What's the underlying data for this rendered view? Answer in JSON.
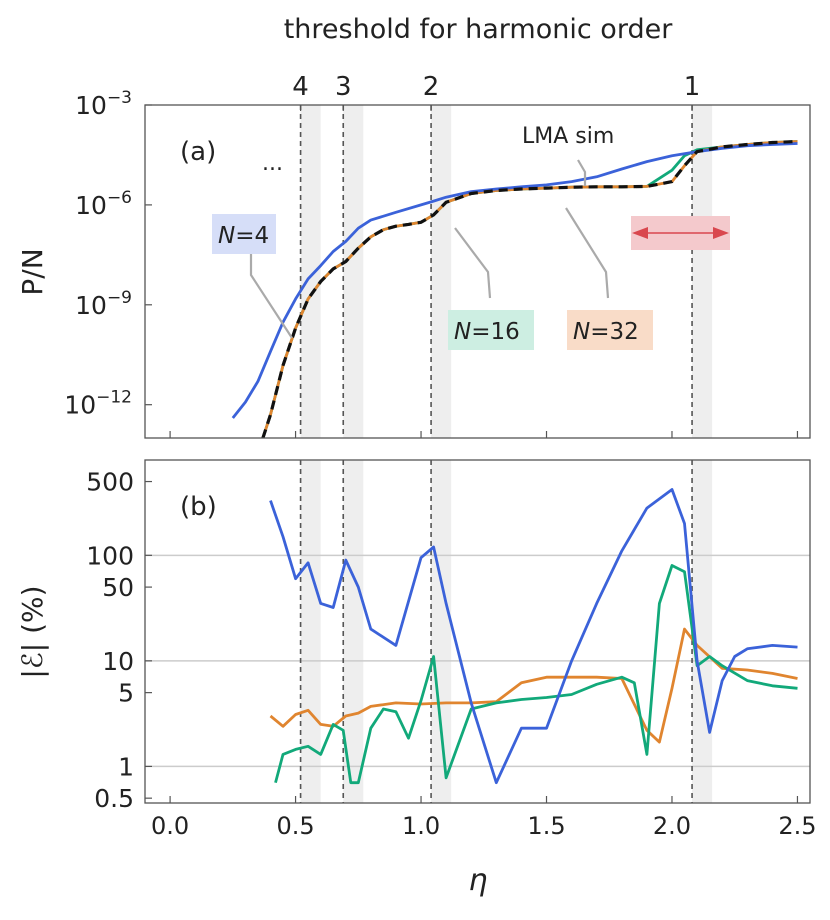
{
  "chart_data": [
    {
      "type": "line",
      "panel_label": "(a)",
      "top_axis_title": "threshold for harmonic order",
      "top_tick_labels": [
        "4",
        "3",
        "2",
        "1"
      ],
      "threshold_eta": [
        0.52,
        0.69,
        1.04,
        2.08
      ],
      "shaded_bands": [
        [
          0.52,
          0.6
        ],
        [
          0.69,
          0.77
        ],
        [
          1.04,
          1.12
        ],
        [
          2.08,
          2.16
        ]
      ],
      "ylabel": "P/N",
      "yscale": "log",
      "ylim": [
        1e-13,
        0.001
      ],
      "xlim": [
        -0.1,
        2.55
      ],
      "yticks": [
        {
          "value": 1e-12,
          "base": "10",
          "exp": "−12"
        },
        {
          "value": 1e-09,
          "base": "10",
          "exp": "−9"
        },
        {
          "value": 1e-06,
          "base": "10",
          "exp": "−6"
        },
        {
          "value": 0.001,
          "base": "10",
          "exp": "−3"
        }
      ],
      "ellipsis": "...",
      "annotations": {
        "lma": "LMA sim",
        "n4": {
          "pre": "N",
          "post": "=4"
        },
        "n16": {
          "pre": "N",
          "post": "=16"
        },
        "n32": {
          "pre": "N",
          "post": "=32"
        }
      },
      "series": [
        {
          "key": "N4",
          "color": "#3b62d9",
          "x": [
            0.25,
            0.3,
            0.35,
            0.4,
            0.45,
            0.5,
            0.55,
            0.6,
            0.65,
            0.7,
            0.75,
            0.8,
            0.9,
            1.0,
            1.05,
            1.1,
            1.2,
            1.3,
            1.4,
            1.5,
            1.6,
            1.7,
            1.8,
            1.9,
            2.0,
            2.1,
            2.2,
            2.3,
            2.4,
            2.5
          ],
          "y": [
            4e-13,
            1.2e-12,
            5e-12,
            4e-11,
            3e-10,
            1.5e-09,
            6e-09,
            1.5e-08,
            4e-08,
            8e-08,
            2e-07,
            3.5e-07,
            6e-07,
            1e-06,
            1.3e-06,
            1.7e-06,
            2.5e-06,
            3e-06,
            3.5e-06,
            4e-06,
            5e-06,
            7e-06,
            1.2e-05,
            2e-05,
            3e-05,
            4e-05,
            5e-05,
            6e-05,
            6.5e-05,
            7e-05
          ]
        },
        {
          "key": "N16",
          "color": "#12a97a",
          "x": [
            0.37,
            0.4,
            0.45,
            0.5,
            0.55,
            0.6,
            0.65,
            0.7,
            0.75,
            0.8,
            0.85,
            0.9,
            0.95,
            1.0,
            1.05,
            1.1,
            1.2,
            1.3,
            1.4,
            1.5,
            1.6,
            1.7,
            1.8,
            1.9,
            2.0,
            2.05,
            2.1,
            2.2,
            2.3,
            2.4,
            2.5
          ],
          "y": [
            3e-14,
            5e-13,
            1.5e-11,
            2e-10,
            1.5e-09,
            5e-09,
            1.2e-08,
            2e-08,
            5e-08,
            1.1e-07,
            1.8e-07,
            2.3e-07,
            2.6e-07,
            3e-07,
            5e-07,
            1.2e-06,
            2.2e-06,
            2.7e-06,
            3e-06,
            3.2e-06,
            3.4e-06,
            3.5e-06,
            3.5e-06,
            3.6e-06,
            1.1e-05,
            3e-05,
            4.5e-05,
            5.5e-05,
            6.5e-05,
            7.5e-05,
            8e-05
          ]
        },
        {
          "key": "N32",
          "color": "#e0852f",
          "x": [
            0.37,
            0.4,
            0.45,
            0.5,
            0.55,
            0.6,
            0.65,
            0.7,
            0.75,
            0.8,
            0.85,
            0.9,
            0.95,
            1.0,
            1.05,
            1.1,
            1.2,
            1.3,
            1.4,
            1.5,
            1.6,
            1.7,
            1.8,
            1.9,
            2.0,
            2.05,
            2.1,
            2.2,
            2.3,
            2.4,
            2.5
          ],
          "y": [
            3e-14,
            5e-13,
            1.5e-11,
            2e-10,
            1.5e-09,
            5e-09,
            1.2e-08,
            2e-08,
            5e-08,
            1.1e-07,
            1.8e-07,
            2.3e-07,
            2.6e-07,
            3e-07,
            5e-07,
            1.2e-06,
            2.2e-06,
            2.7e-06,
            3e-06,
            3.2e-06,
            3.4e-06,
            3.5e-06,
            3.5e-06,
            3.6e-06,
            5e-06,
            1.5e-05,
            4e-05,
            5.5e-05,
            6.5e-05,
            7.5e-05,
            8e-05
          ]
        },
        {
          "key": "LMA",
          "color": "#111111",
          "dashed": true,
          "x": [
            0.37,
            0.4,
            0.45,
            0.5,
            0.55,
            0.6,
            0.65,
            0.7,
            0.75,
            0.8,
            0.85,
            0.9,
            0.95,
            1.0,
            1.05,
            1.1,
            1.2,
            1.3,
            1.4,
            1.5,
            1.6,
            1.7,
            1.8,
            1.9,
            2.0,
            2.05,
            2.1,
            2.2,
            2.3,
            2.4,
            2.5
          ],
          "y": [
            3e-14,
            5e-13,
            1.5e-11,
            2e-10,
            1.5e-09,
            5e-09,
            1.2e-08,
            2e-08,
            5e-08,
            1.1e-07,
            1.8e-07,
            2.3e-07,
            2.6e-07,
            3e-07,
            5e-07,
            1.2e-06,
            2.2e-06,
            2.7e-06,
            3e-06,
            3.2e-06,
            3.4e-06,
            3.5e-06,
            3.5e-06,
            3.6e-06,
            5e-06,
            1.5e-05,
            4e-05,
            5.5e-05,
            6.5e-05,
            7.5e-05,
            8e-05
          ]
        }
      ]
    },
    {
      "type": "line",
      "panel_label": "(b)",
      "xlabel": "η",
      "ylabel": "|ℰ| (%)",
      "yscale": "log",
      "ylim": [
        0.45,
        800
      ],
      "xlim": [
        -0.1,
        2.55
      ],
      "xticks": [
        "0.0",
        "0.5",
        "1.0",
        "1.5",
        "2.0",
        "2.5"
      ],
      "xtick_values": [
        0,
        0.5,
        1.0,
        1.5,
        2.0,
        2.5
      ],
      "yticks": [
        "0.5",
        "1",
        "5",
        "10",
        "50",
        "100",
        "500"
      ],
      "ytick_values": [
        0.5,
        1,
        5,
        10,
        50,
        100,
        500
      ],
      "gridlines_y": [
        1,
        10,
        100
      ],
      "series": [
        {
          "key": "N4",
          "color": "#3b62d9",
          "x": [
            0.4,
            0.45,
            0.5,
            0.55,
            0.6,
            0.65,
            0.7,
            0.75,
            0.8,
            0.9,
            1.0,
            1.05,
            1.1,
            1.2,
            1.3,
            1.4,
            1.5,
            1.6,
            1.7,
            1.8,
            1.9,
            2.0,
            2.05,
            2.1,
            2.15,
            2.2,
            2.25,
            2.3,
            2.4,
            2.5
          ],
          "y": [
            330,
            150,
            60,
            85,
            35,
            32,
            90,
            50,
            20,
            14,
            95,
            120,
            35,
            4,
            0.7,
            2.3,
            2.3,
            10,
            35,
            110,
            280,
            420,
            200,
            10,
            2.1,
            6.5,
            11,
            13,
            14,
            13.5
          ]
        },
        {
          "key": "N16",
          "color": "#12a97a",
          "x": [
            0.42,
            0.45,
            0.5,
            0.55,
            0.6,
            0.65,
            0.69,
            0.72,
            0.75,
            0.8,
            0.85,
            0.9,
            0.95,
            1.0,
            1.05,
            1.1,
            1.2,
            1.3,
            1.4,
            1.5,
            1.6,
            1.7,
            1.8,
            1.85,
            1.9,
            1.95,
            2.0,
            2.05,
            2.1,
            2.15,
            2.2,
            2.3,
            2.4,
            2.5
          ],
          "y": [
            0.7,
            1.3,
            1.45,
            1.55,
            1.3,
            2.5,
            2.2,
            0.7,
            0.7,
            2.3,
            3.5,
            3.3,
            1.85,
            4.2,
            11,
            0.78,
            3.5,
            4.0,
            4.3,
            4.5,
            4.8,
            6.0,
            7.0,
            6.2,
            1.3,
            35,
            80,
            70,
            9,
            11,
            9,
            6.5,
            5.8,
            5.5
          ]
        },
        {
          "key": "N32",
          "color": "#e0852f",
          "x": [
            0.4,
            0.45,
            0.5,
            0.55,
            0.6,
            0.65,
            0.7,
            0.75,
            0.8,
            0.9,
            1.0,
            1.1,
            1.2,
            1.3,
            1.4,
            1.5,
            1.6,
            1.7,
            1.8,
            1.9,
            1.95,
            2.0,
            2.05,
            2.1,
            2.2,
            2.3,
            2.4,
            2.5
          ],
          "y": [
            3.0,
            2.4,
            3.1,
            3.4,
            2.5,
            2.4,
            3.0,
            3.2,
            3.7,
            4.0,
            3.9,
            4.0,
            4.0,
            4.1,
            6.2,
            7.0,
            7.0,
            7.0,
            6.8,
            2.2,
            1.7,
            5.5,
            20,
            14,
            8.5,
            8.2,
            7.6,
            6.8
          ]
        }
      ]
    }
  ]
}
